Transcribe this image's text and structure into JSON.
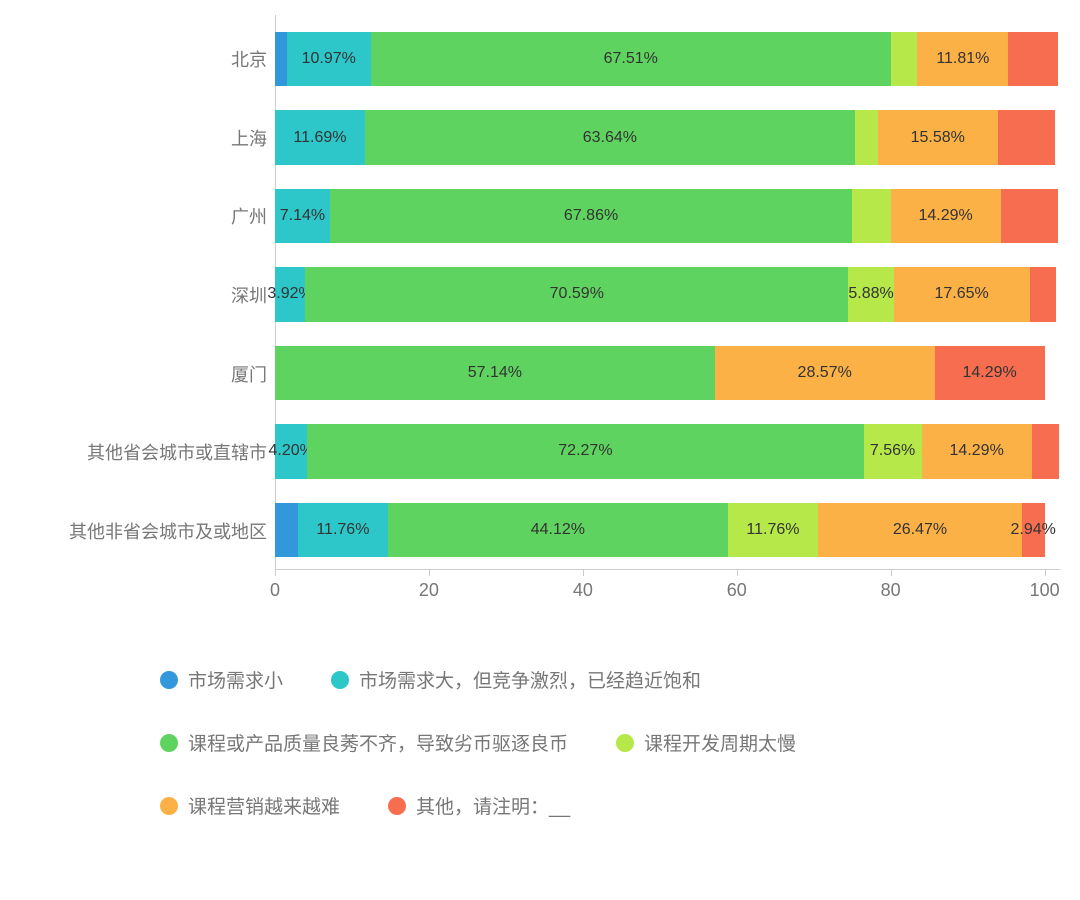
{
  "chart": {
    "type": "stacked-bar-horizontal",
    "background_color": "#ffffff",
    "text_color": "#777777",
    "label_text_color": "#333333",
    "axis_color": "#cccccc",
    "label_fontsize": 18,
    "value_fontsize": 16,
    "xlim": [
      0,
      102
    ],
    "xtick_step": 20,
    "xticks": [
      "0",
      "20",
      "40",
      "60",
      "80",
      "100"
    ],
    "categories": [
      "北京",
      "上海",
      "广州",
      "深圳",
      "厦门",
      "其他省会城市或直辖市",
      "其他非省会城市及或地区"
    ],
    "series": [
      {
        "name": "市场需求小",
        "color": "#3398db"
      },
      {
        "name": "市场需求大，但竞争激烈，已经趋近饱和",
        "color": "#2ec7c9"
      },
      {
        "name": "课程或产品质量良莠不齐，导致劣币驱逐良币",
        "color": "#5fd35f"
      },
      {
        "name": "课程开发周期太慢",
        "color": "#b6e84a"
      },
      {
        "name": "课程营销越来越难",
        "color": "#fbb146"
      },
      {
        "name": "其他，请注明：__",
        "color": "#f66e4f"
      }
    ],
    "rows": [
      {
        "label": "北京",
        "segments": [
          {
            "value": 1.5,
            "color": "#3398db",
            "show": ""
          },
          {
            "value": 10.97,
            "color": "#2ec7c9",
            "show": "10.97%"
          },
          {
            "value": 67.51,
            "color": "#5fd35f",
            "show": "67.51%"
          },
          {
            "value": 3.5,
            "color": "#b6e84a",
            "show": ""
          },
          {
            "value": 11.81,
            "color": "#fbb146",
            "show": "11.81%"
          },
          {
            "value": 6.5,
            "color": "#f66e4f",
            "show": ""
          }
        ]
      },
      {
        "label": "上海",
        "segments": [
          {
            "value": 0.0,
            "color": "#3398db",
            "show": ""
          },
          {
            "value": 11.69,
            "color": "#2ec7c9",
            "show": "11.69%"
          },
          {
            "value": 63.64,
            "color": "#5fd35f",
            "show": "63.64%"
          },
          {
            "value": 3.0,
            "color": "#b6e84a",
            "show": ""
          },
          {
            "value": 15.58,
            "color": "#fbb146",
            "show": "15.58%"
          },
          {
            "value": 7.5,
            "color": "#f66e4f",
            "show": ""
          }
        ]
      },
      {
        "label": "广州",
        "segments": [
          {
            "value": 0.0,
            "color": "#3398db",
            "show": ""
          },
          {
            "value": 7.14,
            "color": "#2ec7c9",
            "show": "7.14%"
          },
          {
            "value": 67.86,
            "color": "#5fd35f",
            "show": "67.86%"
          },
          {
            "value": 5.0,
            "color": "#b6e84a",
            "show": ""
          },
          {
            "value": 14.29,
            "color": "#fbb146",
            "show": "14.29%"
          },
          {
            "value": 7.5,
            "color": "#f66e4f",
            "show": ""
          }
        ]
      },
      {
        "label": "深圳",
        "segments": [
          {
            "value": 0.0,
            "color": "#3398db",
            "show": ""
          },
          {
            "value": 3.92,
            "color": "#2ec7c9",
            "show": "3.92%"
          },
          {
            "value": 70.59,
            "color": "#5fd35f",
            "show": "70.59%"
          },
          {
            "value": 5.88,
            "color": "#b6e84a",
            "show": "5.88%"
          },
          {
            "value": 17.65,
            "color": "#fbb146",
            "show": "17.65%"
          },
          {
            "value": 3.5,
            "color": "#f66e4f",
            "show": ""
          }
        ]
      },
      {
        "label": "厦门",
        "segments": [
          {
            "value": 0.0,
            "color": "#3398db",
            "show": ""
          },
          {
            "value": 0.0,
            "color": "#2ec7c9",
            "show": ""
          },
          {
            "value": 57.14,
            "color": "#5fd35f",
            "show": "57.14%"
          },
          {
            "value": 0.0,
            "color": "#b6e84a",
            "show": ""
          },
          {
            "value": 28.57,
            "color": "#fbb146",
            "show": "28.57%"
          },
          {
            "value": 14.29,
            "color": "#f66e4f",
            "show": "14.29%"
          }
        ]
      },
      {
        "label": "其他省会城市或直辖市",
        "segments": [
          {
            "value": 0.0,
            "color": "#3398db",
            "show": ""
          },
          {
            "value": 4.2,
            "color": "#2ec7c9",
            "show": "4.20%"
          },
          {
            "value": 72.27,
            "color": "#5fd35f",
            "show": "72.27%"
          },
          {
            "value": 7.56,
            "color": "#b6e84a",
            "show": "7.56%"
          },
          {
            "value": 14.29,
            "color": "#fbb146",
            "show": "14.29%"
          },
          {
            "value": 3.5,
            "color": "#f66e4f",
            "show": ""
          }
        ]
      },
      {
        "label": "其他非省会城市及或地区",
        "segments": [
          {
            "value": 2.94,
            "color": "#3398db",
            "show": ""
          },
          {
            "value": 11.76,
            "color": "#2ec7c9",
            "show": "11.76%"
          },
          {
            "value": 44.12,
            "color": "#5fd35f",
            "show": "44.12%"
          },
          {
            "value": 11.76,
            "color": "#b6e84a",
            "show": "11.76%"
          },
          {
            "value": 26.47,
            "color": "#fbb146",
            "show": "26.47%"
          },
          {
            "value": 2.94,
            "color": "#f66e4f",
            "show": "2.94%"
          }
        ]
      }
    ]
  }
}
